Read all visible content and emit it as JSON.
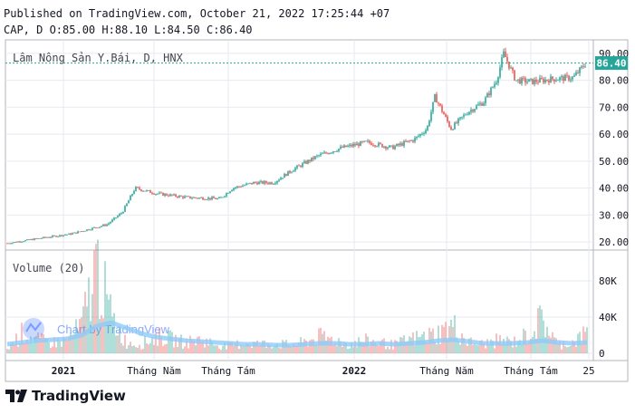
{
  "header": {
    "published": "Published on TradingView.com, October 21, 2022 17:25:44 +07",
    "ohlc": "CAP, D O:85.00 H:88.10 L:84.50 C:86.40"
  },
  "footer": {
    "brand": "TradingView"
  },
  "colors": {
    "up": "#26a69a",
    "down": "#ef5350",
    "grid": "#e6e9ef",
    "ma": "#90caf9",
    "watermark": "#2962ff"
  },
  "chart_data": [
    {
      "type": "candlestick",
      "title": "Lâm Nông Sản Y.Bái, D, HNX",
      "price_label": "86.40",
      "y_ticks": [
        "90.00",
        "80.00",
        "70.00",
        "60.00",
        "50.00",
        "40.00",
        "30.00",
        "20.00"
      ],
      "ylim": [
        17,
        95
      ],
      "x_ticks": [
        "2021",
        "Tháng Năm",
        "Tháng Tám",
        "2022",
        "Tháng Năm",
        "Tháng Tám",
        "25"
      ],
      "watermark": "Chart by TradingView",
      "grid": true,
      "series": [
        {
          "x": [
            "2020-10-27",
            "2020-12-10",
            "2021-01-15",
            "2021-03-01",
            "2021-03-20",
            "2021-04-05",
            "2021-05-01",
            "2021-06-10",
            "2021-07-20",
            "2021-08-05",
            "2021-09-01",
            "2021-09-25",
            "2021-10-20",
            "2021-11-20",
            "2021-12-20",
            "2022-01-20",
            "2022-02-20",
            "2022-03-20",
            "2022-04-05",
            "2022-04-15",
            "2022-05-05",
            "2022-05-25",
            "2022-06-15",
            "2022-07-01",
            "2022-07-10",
            "2022-07-25",
            "2022-08-15",
            "2022-09-10",
            "2022-10-05",
            "2022-10-21"
          ],
          "close": [
            19.5,
            21.5,
            23.0,
            26.5,
            31.0,
            40.0,
            38.0,
            36.5,
            36.0,
            40.0,
            42.0,
            42.0,
            47.0,
            52.0,
            55.0,
            57.0,
            55.0,
            58.0,
            62.0,
            74.0,
            62.0,
            68.0,
            72.0,
            80.0,
            90.0,
            80.0,
            79.5,
            80.5,
            81.0,
            86.4
          ]
        }
      ]
    },
    {
      "type": "bar",
      "title": "Volume (20)",
      "y_ticks": [
        "80K",
        "40K",
        "0"
      ],
      "ylim": [
        0,
        100000
      ],
      "volume_k": [
        5,
        22,
        15,
        12,
        14,
        30,
        98,
        40,
        12,
        10,
        18,
        16,
        12,
        15,
        10,
        8,
        12,
        10,
        11,
        9,
        12,
        18,
        15,
        10,
        14,
        12,
        9,
        15,
        18,
        22,
        30,
        12,
        10,
        14,
        12,
        20,
        38,
        10,
        12,
        22
      ],
      "ma_k": [
        10,
        12,
        14,
        15,
        16,
        20,
        30,
        34,
        28,
        22,
        18,
        16,
        14,
        13,
        12,
        11,
        10,
        10,
        9,
        9,
        10,
        11,
        11,
        10,
        10,
        11,
        10,
        11,
        12,
        14,
        15,
        13,
        11,
        11,
        11,
        12,
        14,
        12,
        11,
        12
      ]
    }
  ]
}
